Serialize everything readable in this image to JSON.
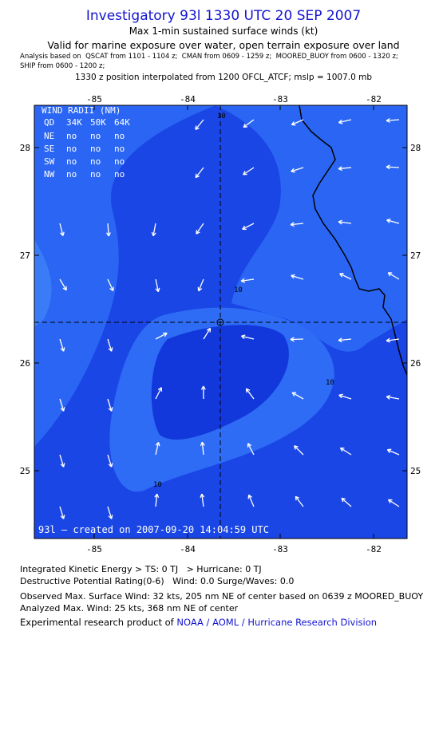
{
  "header": {
    "title": "Investigatory 93l 1330 UTC 20 SEP 2007",
    "subtitle": "Max 1-min sustained surface winds (kt)",
    "valid": "Valid for marine exposure over water, open terrain exposure over land",
    "analysis_line1": "Analysis based on  QSCAT from 1101 - 1104 z;  CMAN from 0609 - 1259 z;  MOORED_BUOY from 0600 - 1320 z;",
    "analysis_line2": "SHIP from 0600 - 1200 z;",
    "position": "1330 z position interpolated from 1200 OFCL_ATCF; mslp = 1007.0 mb"
  },
  "map": {
    "lon_labels": [
      "-85",
      "-84",
      "-83",
      "-82"
    ],
    "lat_labels": [
      "28",
      "27",
      "26",
      "25"
    ],
    "contour_labels": [
      "10",
      "10",
      "10",
      "10"
    ],
    "wind_radii": {
      "title": "WIND RADII (NM)",
      "header": [
        "QD",
        "34K",
        "50K",
        "64K"
      ],
      "rows": [
        [
          "NE",
          "no",
          "no",
          "no"
        ],
        [
          "SE",
          "no",
          "no",
          "no"
        ],
        [
          "SW",
          "no",
          "no",
          "no"
        ],
        [
          "NW",
          "no",
          "no",
          "no"
        ]
      ]
    },
    "created": "93l — created on 2007-09-20 14:04:59 UTC"
  },
  "footer": {
    "ike": "Integrated Kinetic Energy > TS: 0 TJ   > Hurricane: 0 TJ",
    "dpr": "Destructive Potential Rating(0-6)   Wind: 0.0 Surge/Waves: 0.0",
    "observed": "Observed Max. Surface Wind: 32 kts, 205 nm NE of center based on 0639 z MOORED_BUOY",
    "analyzed": "Analyzed Max. Wind: 25 kts, 368 nm NE of center",
    "product": "Experimental research product of",
    "link": "NOAA / AOML / Hurricane Research Division"
  }
}
